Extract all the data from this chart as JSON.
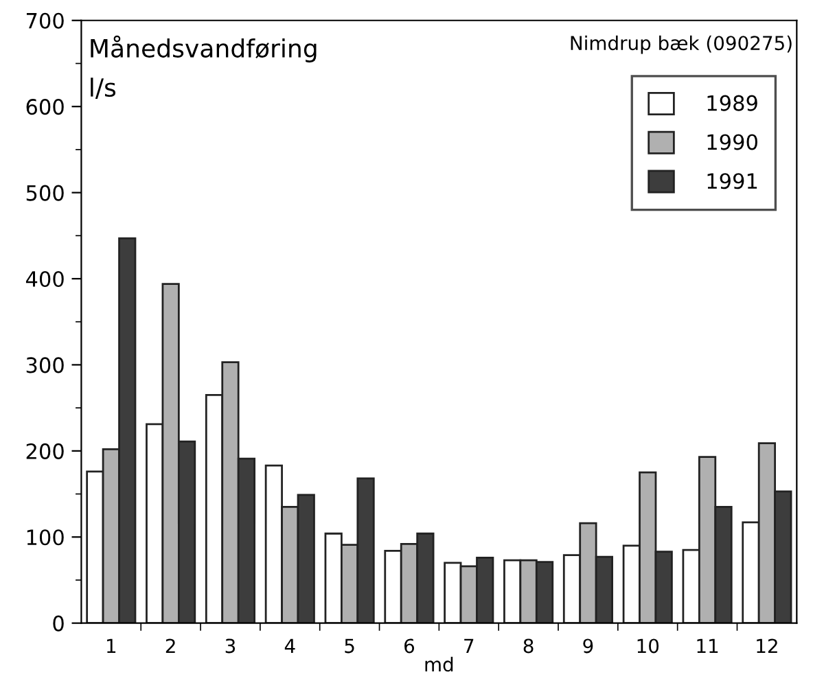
{
  "chart_data": {
    "type": "bar",
    "title": "Månedsvandføring",
    "ylabel": "l/s",
    "xlabel": "md",
    "annotations": [
      "Nimdrup bæk (090275)"
    ],
    "categories": [
      "1",
      "2",
      "3",
      "4",
      "5",
      "6",
      "7",
      "8",
      "9",
      "10",
      "11",
      "12"
    ],
    "series": [
      {
        "name": "1989",
        "color": "#ffffff",
        "values": [
          176,
          231,
          265,
          183,
          104,
          84,
          70,
          73,
          79,
          90,
          85,
          117
        ]
      },
      {
        "name": "1990",
        "color": "#b0b0b0",
        "values": [
          202,
          394,
          303,
          135,
          91,
          92,
          66,
          73,
          116,
          175,
          193,
          209
        ]
      },
      {
        "name": "1991",
        "color": "#3d3d3d",
        "values": [
          447,
          211,
          191,
          149,
          168,
          104,
          76,
          71,
          77,
          83,
          135,
          153
        ]
      }
    ],
    "ylim": [
      0,
      700
    ],
    "yticks": [
      0,
      {
        "value": 50,
        "label": null
      },
      100,
      {
        "value": 150,
        "label": null
      },
      200,
      {
        "value": 250,
        "label": null
      },
      300,
      {
        "value": 350,
        "label": null
      },
      400,
      {
        "value": 450,
        "label": null
      },
      500,
      {
        "value": 550,
        "label": null
      },
      600,
      {
        "value": 650,
        "label": null
      },
      700
    ],
    "grid": false,
    "legend": "top right"
  }
}
